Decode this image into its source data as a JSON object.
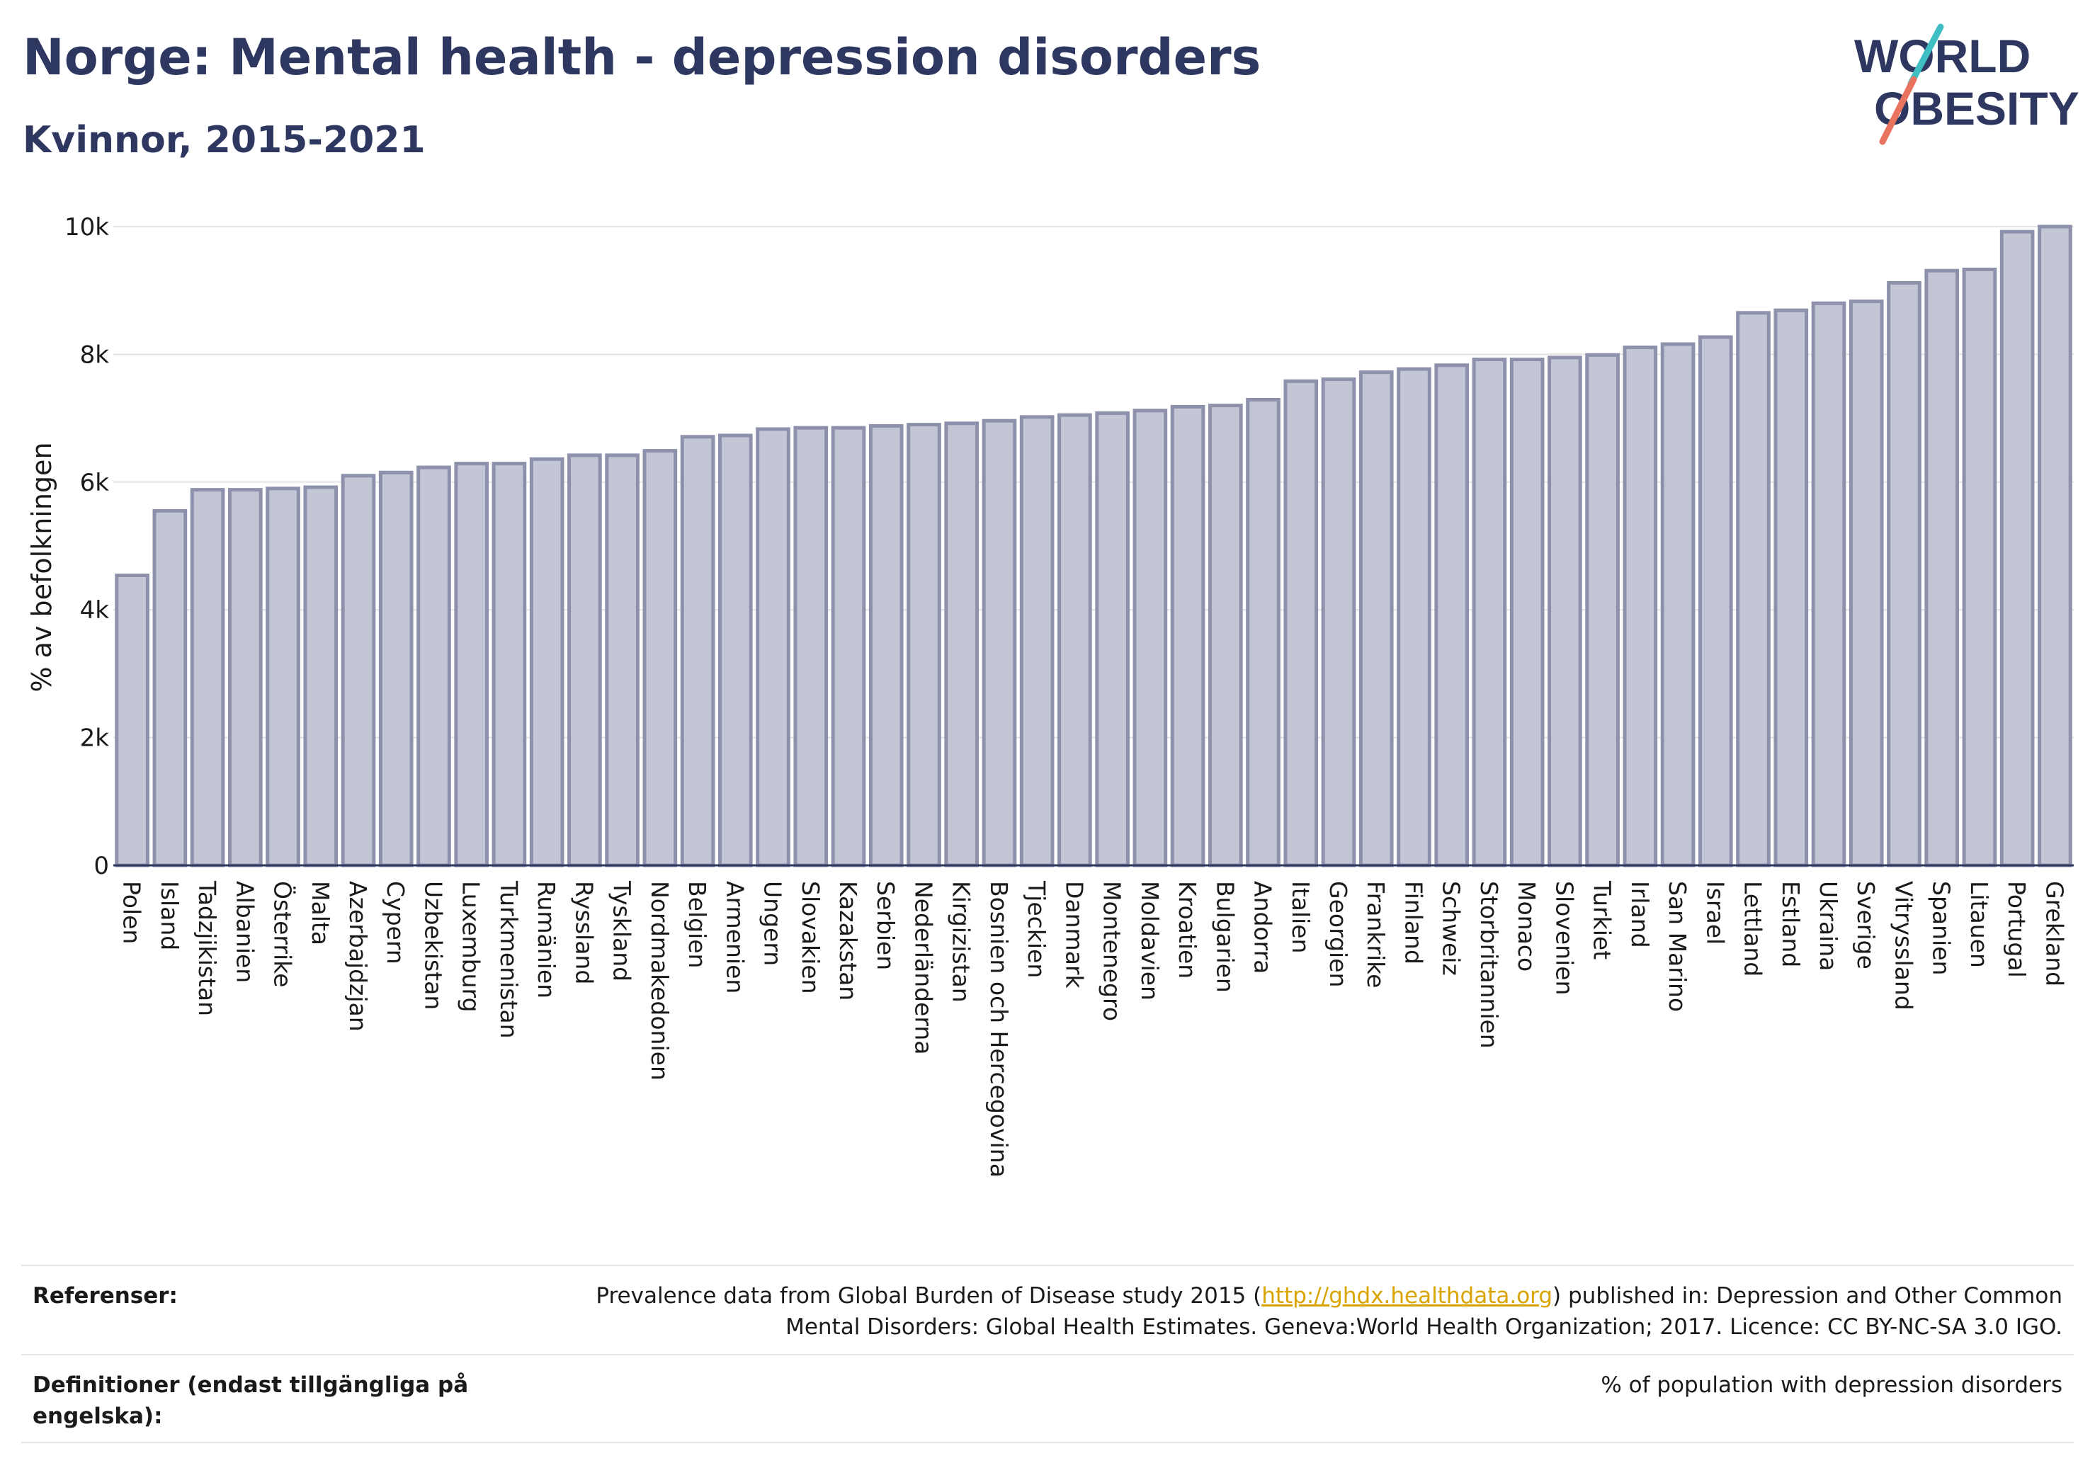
{
  "header": {
    "title": "Norge: Mental health - depression disorders",
    "subtitle": "Kvinnor, 2015-2021"
  },
  "logo": {
    "line1": "WORLD",
    "line2": "OBESITY"
  },
  "chart_data": {
    "type": "bar",
    "ylabel": "% av befolkningen",
    "ylim": [
      0,
      10000
    ],
    "yticks": [
      {
        "value": 0,
        "label": "0"
      },
      {
        "value": 2000,
        "label": "2k"
      },
      {
        "value": 4000,
        "label": "4k"
      },
      {
        "value": 6000,
        "label": "6k"
      },
      {
        "value": 8000,
        "label": "8k"
      },
      {
        "value": 10000,
        "label": "10k"
      }
    ],
    "grid": true,
    "bar_color": "#c3c6d4",
    "bar_edge_color": "#8d91ab",
    "categories": [
      "Polen",
      "Island",
      "Tadzjikistan",
      "Albanien",
      "Österrike",
      "Malta",
      "Azerbajdzjan",
      "Cypern",
      "Uzbekistan",
      "Luxemburg",
      "Turkmenistan",
      "Rumänien",
      "Ryssland",
      "Tyskland",
      "Nordmakedonien",
      "Belgien",
      "Armenien",
      "Ungern",
      "Slovakien",
      "Kazakstan",
      "Serbien",
      "Nederländerna",
      "Kirgizistan",
      "Bosnien och Hercegovina",
      "Tjeckien",
      "Danmark",
      "Montenegro",
      "Moldavien",
      "Kroatien",
      "Bulgarien",
      "Andorra",
      "Italien",
      "Georgien",
      "Frankrike",
      "Finland",
      "Schweiz",
      "Storbritannien",
      "Monaco",
      "Slovenien",
      "Turkiet",
      "Irland",
      "San Marino",
      "Israel",
      "Lettland",
      "Estland",
      "Ukraina",
      "Sverige",
      "Vitryssland",
      "Spanien",
      "Litauen",
      "Portugal",
      "Grekland"
    ],
    "values": [
      4540,
      5550,
      5880,
      5880,
      5900,
      5920,
      6100,
      6150,
      6230,
      6290,
      6290,
      6360,
      6420,
      6420,
      6490,
      6710,
      6730,
      6830,
      6850,
      6850,
      6880,
      6900,
      6920,
      6960,
      7020,
      7050,
      7080,
      7120,
      7180,
      7200,
      7290,
      7580,
      7610,
      7720,
      7770,
      7830,
      7920,
      7920,
      7950,
      7990,
      8110,
      8160,
      8270,
      8650,
      8690,
      8800,
      8830,
      9120,
      9310,
      9330,
      9920,
      10000
    ]
  },
  "footer": {
    "references_label": "Referenser:",
    "references_text_before": "Prevalence data from Global Burden of Disease study 2015 (",
    "references_link": "http://ghdx.healthdata.org",
    "references_text_after": ") published in: Depression and Other Common Mental Disorders: Global Health Estimates. Geneva:World Health Organization; 2017. Licence: CC BY-NC-SA 3.0 IGO.",
    "definitions_label": "Definitioner (endast tillgängliga på engelska):",
    "definitions_text": "% of population with depression disorders"
  }
}
